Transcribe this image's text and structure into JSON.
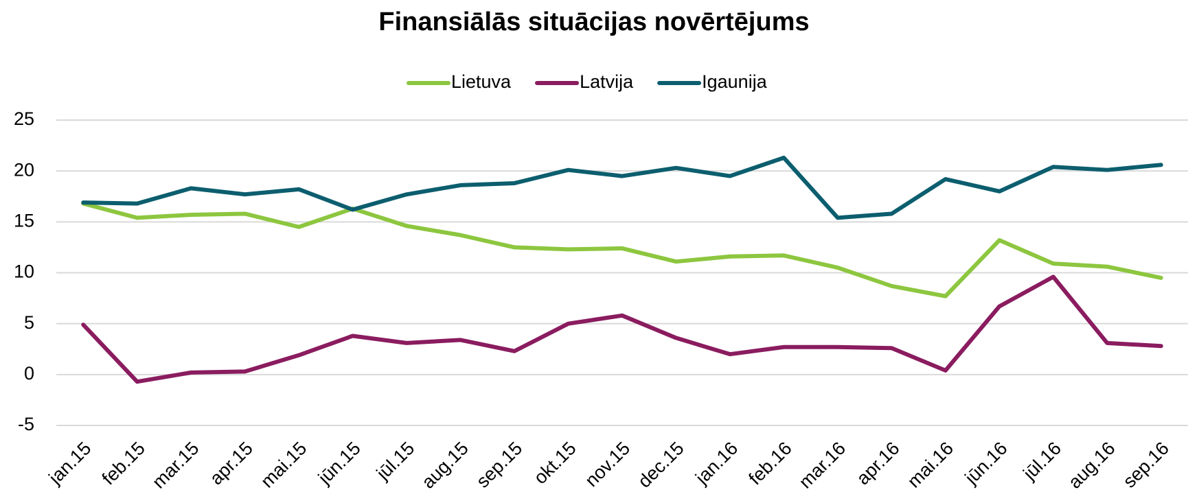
{
  "chart_data": {
    "type": "line",
    "title": "Finansiālās situācijas novērtējums",
    "categories": [
      "jan.15",
      "feb.15",
      "mar.15",
      "apr.15",
      "mai.15",
      "jūn.15",
      "jūl.15",
      "aug.15",
      "sep.15",
      "okt.15",
      "nov.15",
      "dec.15",
      "jan.16",
      "feb.16",
      "mar.16",
      "apr.16",
      "mai.16",
      "jūn.16",
      "jūl.16",
      "aug.16",
      "sep.16"
    ],
    "series": [
      {
        "name": "Lietuva",
        "color": "#8dc63f",
        "values": [
          16.8,
          15.4,
          15.7,
          15.8,
          14.5,
          16.3,
          14.6,
          13.7,
          12.5,
          12.3,
          12.4,
          11.1,
          11.6,
          11.7,
          10.5,
          8.7,
          7.7,
          13.2,
          10.9,
          10.6,
          9.5
        ]
      },
      {
        "name": "Latvija",
        "color": "#8a1c5f",
        "values": [
          4.9,
          -0.7,
          0.2,
          0.3,
          1.9,
          3.8,
          3.1,
          3.4,
          2.3,
          5.0,
          5.8,
          3.6,
          2.0,
          2.7,
          2.7,
          2.6,
          0.4,
          6.7,
          9.6,
          3.1,
          2.8
        ]
      },
      {
        "name": "Igaunija",
        "color": "#0c5e6e",
        "values": [
          16.9,
          16.8,
          18.3,
          17.7,
          18.2,
          16.2,
          17.7,
          18.6,
          18.8,
          20.1,
          19.5,
          20.3,
          19.5,
          21.3,
          15.4,
          15.8,
          19.2,
          18.0,
          20.4,
          20.1,
          20.6
        ]
      }
    ],
    "ylim": [
      -5,
      25
    ],
    "yticks": [
      -5,
      0,
      5,
      10,
      15,
      20,
      25
    ],
    "grid": true,
    "legend": "top"
  }
}
